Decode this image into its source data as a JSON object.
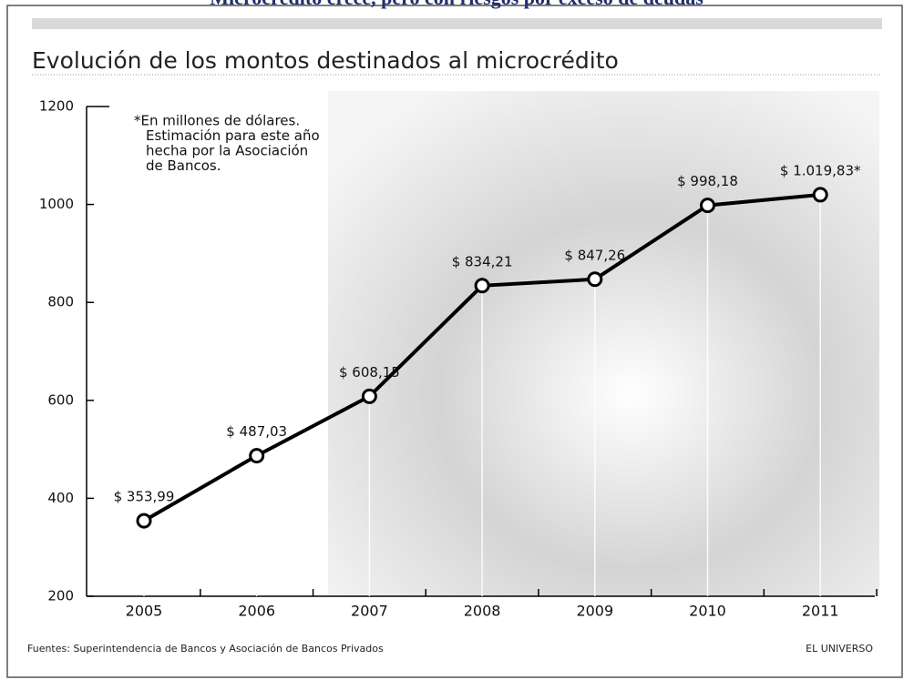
{
  "chart_data": {
    "type": "line",
    "headline": "Microcrédito crece, pero con riesgos por exceso de deudas",
    "title": "Evolución de los montos destinados al microcrédito",
    "note": [
      "*En millones de dólares.",
      "Estimación para este año",
      "hecha por la Asociación",
      "de Bancos."
    ],
    "categories": [
      "2005",
      "2006",
      "2007",
      "2008",
      "2009",
      "2010",
      "2011"
    ],
    "values": [
      353.99,
      487.03,
      608.15,
      834.21,
      847.26,
      998.18,
      1019.83
    ],
    "value_labels": [
      "$ 353,99",
      "$ 487,03",
      "$ 608,15",
      "$ 834,21",
      "$ 847,26",
      "$ 998,18",
      "$ 1.019,83*"
    ],
    "color": "#000000",
    "ylim": [
      200,
      1200
    ],
    "yticks": [
      200,
      400,
      600,
      800,
      1000,
      1200
    ],
    "source": "Fuentes: Superintendencia de Bancos y Asociación de Bancos Privados",
    "credit": "EL UNIVERSO"
  }
}
